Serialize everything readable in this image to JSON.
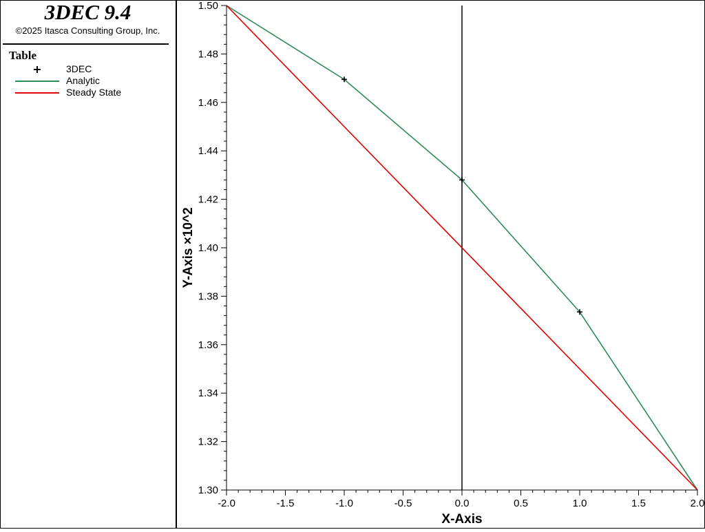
{
  "sidebar": {
    "app_title": "3DEC 9.4",
    "copyright": "©2025 Itasca Consulting Group, Inc.",
    "legend_heading": "Table",
    "legend_items": [
      {
        "label": "3DEC",
        "marker": "plus-marker-icon",
        "color": "#000000"
      },
      {
        "label": "Analytic",
        "marker": "line-swatch-icon",
        "color": "#2e8b57"
      },
      {
        "label": "Steady State",
        "marker": "line-swatch-icon",
        "color": "#e00000"
      }
    ]
  },
  "chart_data": {
    "type": "line",
    "xlabel": "X-Axis",
    "ylabel": "Y-Axis ×10^2",
    "xlim": [
      -2.0,
      2.0
    ],
    "ylim": [
      1.3,
      1.5
    ],
    "x_ticks": [
      "-2.0",
      "-1.5",
      "-1.0",
      "-0.5",
      "0.0",
      "0.5",
      "1.0",
      "1.5",
      "2.0"
    ],
    "y_ticks": [
      "1.30",
      "1.32",
      "1.34",
      "1.36",
      "1.38",
      "1.40",
      "1.42",
      "1.44",
      "1.46",
      "1.48",
      "1.50"
    ],
    "vertical_reference_line_x": 0.0,
    "series": [
      {
        "name": "Analytic",
        "style": "line",
        "color": "#2e8b57",
        "x": [
          -2.0,
          -1.0,
          0.0,
          1.0,
          2.0
        ],
        "y": [
          1.5,
          1.4695,
          1.428,
          1.3735,
          1.3
        ]
      },
      {
        "name": "Steady State",
        "style": "line",
        "color": "#e00000",
        "x": [
          -2.0,
          2.0
        ],
        "y": [
          1.5,
          1.3
        ]
      },
      {
        "name": "3DEC",
        "style": "plus-marker",
        "color": "#000000",
        "x": [
          -1.0,
          0.0,
          1.0
        ],
        "y": [
          1.4695,
          1.428,
          1.3735
        ]
      }
    ]
  }
}
